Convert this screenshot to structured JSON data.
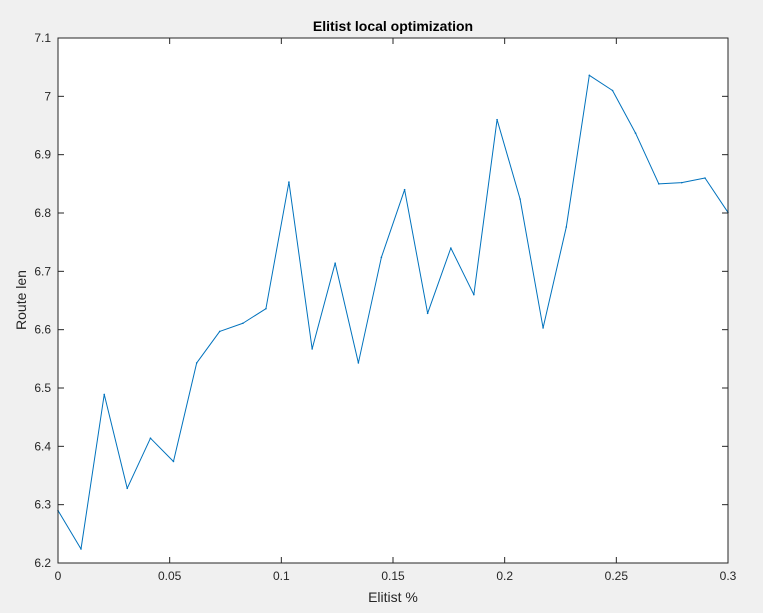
{
  "chart_data": {
    "type": "line",
    "title": "Elitist local optimization",
    "xlabel": "Elitist %",
    "ylabel": "Route len",
    "xlim": [
      0,
      0.3
    ],
    "ylim": [
      6.2,
      7.1
    ],
    "xticks": [
      0,
      0.05,
      0.1,
      0.15,
      0.2,
      0.25,
      0.3
    ],
    "xtick_labels": [
      "0",
      "0.05",
      "0.1",
      "0.15",
      "0.2",
      "0.25",
      "0.3"
    ],
    "yticks": [
      6.2,
      6.3,
      6.4,
      6.5,
      6.6,
      6.7,
      6.8,
      6.9,
      7.0,
      7.1
    ],
    "ytick_labels": [
      "6.2",
      "6.3",
      "6.4",
      "6.5",
      "6.6",
      "6.7",
      "6.8",
      "6.9",
      "7",
      "7.1"
    ],
    "grid": false,
    "series": [
      {
        "color": "#0072bd",
        "x": [
          0,
          0.0103,
          0.0207,
          0.031,
          0.0414,
          0.0517,
          0.0621,
          0.0724,
          0.0828,
          0.0931,
          0.1034,
          0.1138,
          0.1241,
          0.1345,
          0.1448,
          0.1552,
          0.1655,
          0.1759,
          0.1862,
          0.1966,
          0.2069,
          0.2172,
          0.2276,
          0.2379,
          0.2483,
          0.2586,
          0.269,
          0.2793,
          0.2897,
          0.3
        ],
        "y": [
          6.29,
          6.224,
          6.489,
          6.328,
          6.414,
          6.374,
          6.543,
          6.597,
          6.611,
          6.636,
          6.853,
          6.567,
          6.714,
          6.543,
          6.724,
          6.84,
          6.628,
          6.74,
          6.66,
          6.96,
          6.824,
          6.603,
          6.776,
          7.036,
          7.01,
          6.937,
          6.85,
          6.852,
          6.86,
          6.801
        ]
      }
    ]
  }
}
